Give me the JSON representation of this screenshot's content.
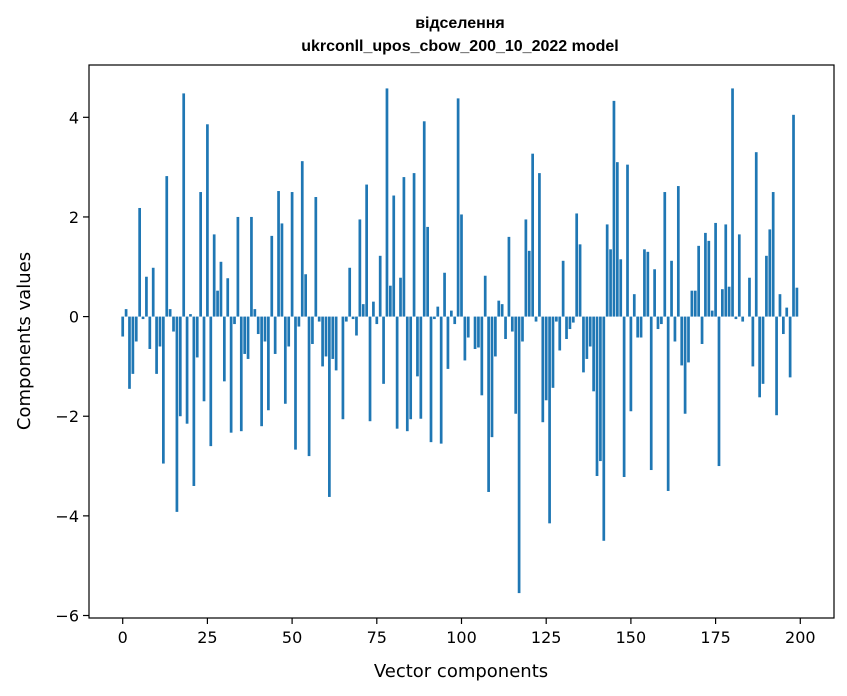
{
  "chart_data": {
    "type": "bar",
    "title_line1": "відселення",
    "title_line2": "ukrconll_upos_cbow_200_10_2022 model",
    "xlabel": "Vector components",
    "ylabel": "Components values",
    "bar_color": "#1f77b4",
    "xlim": [
      -9.95,
      209.95
    ],
    "ylim": [
      -6.05,
      5.05
    ],
    "xticks": [
      0,
      25,
      50,
      75,
      100,
      125,
      150,
      175,
      200
    ],
    "xtick_labels": [
      "0",
      "25",
      "50",
      "75",
      "100",
      "125",
      "150",
      "175",
      "200"
    ],
    "yticks": [
      -6,
      -4,
      -2,
      0,
      2,
      4
    ],
    "ytick_labels": [
      "−6",
      "−4",
      "−2",
      "0",
      "2",
      "4"
    ],
    "x": [
      0,
      1,
      2,
      3,
      4,
      5,
      6,
      7,
      8,
      9,
      10,
      11,
      12,
      13,
      14,
      15,
      16,
      17,
      18,
      19,
      20,
      21,
      22,
      23,
      24,
      25,
      26,
      27,
      28,
      29,
      30,
      31,
      32,
      33,
      34,
      35,
      36,
      37,
      38,
      39,
      40,
      41,
      42,
      43,
      44,
      45,
      46,
      47,
      48,
      49,
      50,
      51,
      52,
      53,
      54,
      55,
      56,
      57,
      58,
      59,
      60,
      61,
      62,
      63,
      64,
      65,
      66,
      67,
      68,
      69,
      70,
      71,
      72,
      73,
      74,
      75,
      76,
      77,
      78,
      79,
      80,
      81,
      82,
      83,
      84,
      85,
      86,
      87,
      88,
      89,
      90,
      91,
      92,
      93,
      94,
      95,
      96,
      97,
      98,
      99,
      100,
      101,
      102,
      103,
      104,
      105,
      106,
      107,
      108,
      109,
      110,
      111,
      112,
      113,
      114,
      115,
      116,
      117,
      118,
      119,
      120,
      121,
      122,
      123,
      124,
      125,
      126,
      127,
      128,
      129,
      130,
      131,
      132,
      133,
      134,
      135,
      136,
      137,
      138,
      139,
      140,
      141,
      142,
      143,
      144,
      145,
      146,
      147,
      148,
      149,
      150,
      151,
      152,
      153,
      154,
      155,
      156,
      157,
      158,
      159,
      160,
      161,
      162,
      163,
      164,
      165,
      166,
      167,
      168,
      169,
      170,
      171,
      172,
      173,
      174,
      175,
      176,
      177,
      178,
      179,
      180,
      181,
      182,
      183,
      184,
      185,
      186,
      187,
      188,
      189,
      190,
      191,
      192,
      193,
      194,
      195,
      196,
      197,
      198,
      199
    ],
    "values": [
      -0.4,
      0.15,
      -1.45,
      -1.15,
      -0.5,
      2.18,
      -0.05,
      0.8,
      -0.65,
      0.98,
      -1.15,
      -0.6,
      -2.95,
      2.82,
      0.15,
      -0.3,
      -3.92,
      -2.0,
      4.48,
      -2.15,
      0.05,
      -3.4,
      -0.82,
      2.5,
      -1.7,
      3.86,
      -2.6,
      1.65,
      0.52,
      1.1,
      -1.3,
      0.77,
      -2.33,
      -0.15,
      2.0,
      -2.3,
      -0.75,
      -0.85,
      2.0,
      0.15,
      -0.35,
      -2.2,
      -0.5,
      -1.88,
      1.62,
      -0.75,
      2.52,
      1.87,
      -1.75,
      -0.6,
      2.5,
      -2.67,
      -0.2,
      3.12,
      0.85,
      -2.8,
      -0.55,
      2.4,
      -0.1,
      -1.0,
      -0.8,
      -3.62,
      -0.85,
      -1.08,
      0.0,
      -2.06,
      -0.1,
      0.98,
      -0.05,
      -0.38,
      1.95,
      0.25,
      2.65,
      -2.1,
      0.3,
      -0.15,
      1.22,
      -1.35,
      4.58,
      0.62,
      2.43,
      -2.25,
      0.78,
      2.8,
      -2.3,
      -2.06,
      2.88,
      -1.2,
      -2.05,
      3.92,
      1.8,
      -2.52,
      -0.05,
      0.2,
      -2.55,
      0.88,
      -1.05,
      0.12,
      -0.15,
      4.38,
      2.05,
      -0.88,
      -0.42,
      0.0,
      -0.65,
      -0.62,
      -1.58,
      0.82,
      -3.52,
      -2.42,
      -0.8,
      0.32,
      0.25,
      -0.45,
      1.6,
      -0.3,
      -1.95,
      -5.55,
      -0.5,
      1.95,
      1.32,
      3.27,
      -0.1,
      2.88,
      -2.12,
      -1.68,
      -4.15,
      -1.43,
      -0.1,
      -0.68,
      1.12,
      -0.45,
      -0.25,
      -0.12,
      2.07,
      1.45,
      -1.12,
      -0.85,
      -0.6,
      -1.5,
      -3.2,
      -2.9,
      -4.5,
      1.85,
      1.35,
      4.33,
      3.1,
      1.15,
      -3.22,
      3.05,
      -1.9,
      0.45,
      -0.42,
      -0.42,
      1.35,
      1.3,
      -3.08,
      0.95,
      -0.25,
      -0.15,
      2.5,
      -3.5,
      1.12,
      -0.5,
      2.62,
      -0.98,
      -1.95,
      -0.92,
      0.52,
      0.52,
      1.42,
      -0.55,
      1.68,
      1.52,
      0.12,
      1.88,
      -3.0,
      0.55,
      1.85,
      0.6,
      4.58,
      -0.05,
      1.65,
      -0.1,
      0.0,
      0.78,
      -1.0,
      3.3,
      -1.62,
      -1.35,
      1.22,
      1.75,
      2.5,
      -1.98,
      0.45,
      -0.35,
      0.18,
      -1.22,
      4.05,
      0.58
    ]
  }
}
